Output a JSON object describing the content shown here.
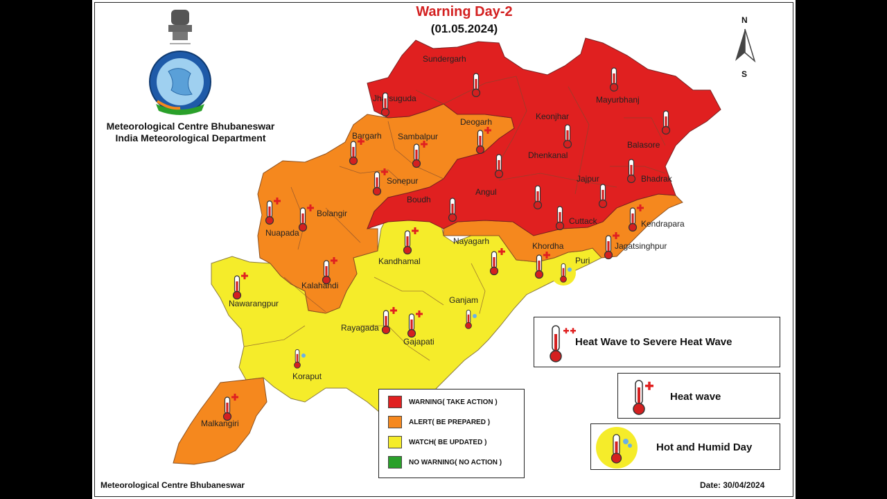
{
  "header": {
    "title": "Warning Day-2",
    "date": "(01.05.2024)"
  },
  "organization": {
    "line1": "Meteorological Centre Bhubaneswar",
    "line2": "India Meteorological Department"
  },
  "compass": {
    "north": "N",
    "south": "S"
  },
  "districts": {
    "sundergarh": "Sundergarh",
    "jharsuguda": "Jharsuguda",
    "mayurbhanj": "Mayurbhanj",
    "keonjhar": "Keonjhar",
    "deogarh": "Deogarh",
    "bargarh": "Bargarh",
    "sambalpur": "Sambalpur",
    "balasore": "Balasore",
    "dhenkanal": "Dhenkanal",
    "sonepur": "Sonepur",
    "jajpur": "Jajpur",
    "bhadrak": "Bhadrak",
    "angul": "Angul",
    "boudh": "Boudh",
    "bolangir": "Bolangir",
    "cuttack": "Cuttack",
    "kendrapara": "Kendrapara",
    "nuapada": "Nuapada",
    "nayagarh": "Nayagarh",
    "jagatsinghpur": "Jagatsinghpur",
    "khordha": "Khordha",
    "kandhamal": "Kandhamal",
    "puri": "Puri",
    "kalahandi": "Kalahandi",
    "nawarangpur": "Nawarangpur",
    "ganjam": "Ganjam",
    "rayagada": "Rayagada",
    "gajapati": "Gajapati",
    "koraput": "Koraput",
    "malkangiri": "Malkangiri"
  },
  "legend": {
    "items": [
      {
        "label": "WARNING( TAKE ACTION )",
        "color": "#e02020"
      },
      {
        "label": "ALERT( BE PREPARED )",
        "color": "#f5881e"
      },
      {
        "label": "WATCH( BE UPDATED )",
        "color": "#f5ec2a"
      },
      {
        "label": "NO WARNING( NO ACTION )",
        "color": "#2aa02a"
      }
    ]
  },
  "symbol_key": {
    "severe": "Heat Wave to Severe Heat Wave",
    "heatwave": "Heat wave",
    "humid": "Hot and Humid Day"
  },
  "colors": {
    "warning": "#e02020",
    "alert": "#f5881e",
    "watch": "#f5ec2a",
    "title": "#d32020"
  },
  "footer": {
    "left": "Meteorological Centre Bhubaneswar",
    "right": "Date: 30/04/2024"
  }
}
